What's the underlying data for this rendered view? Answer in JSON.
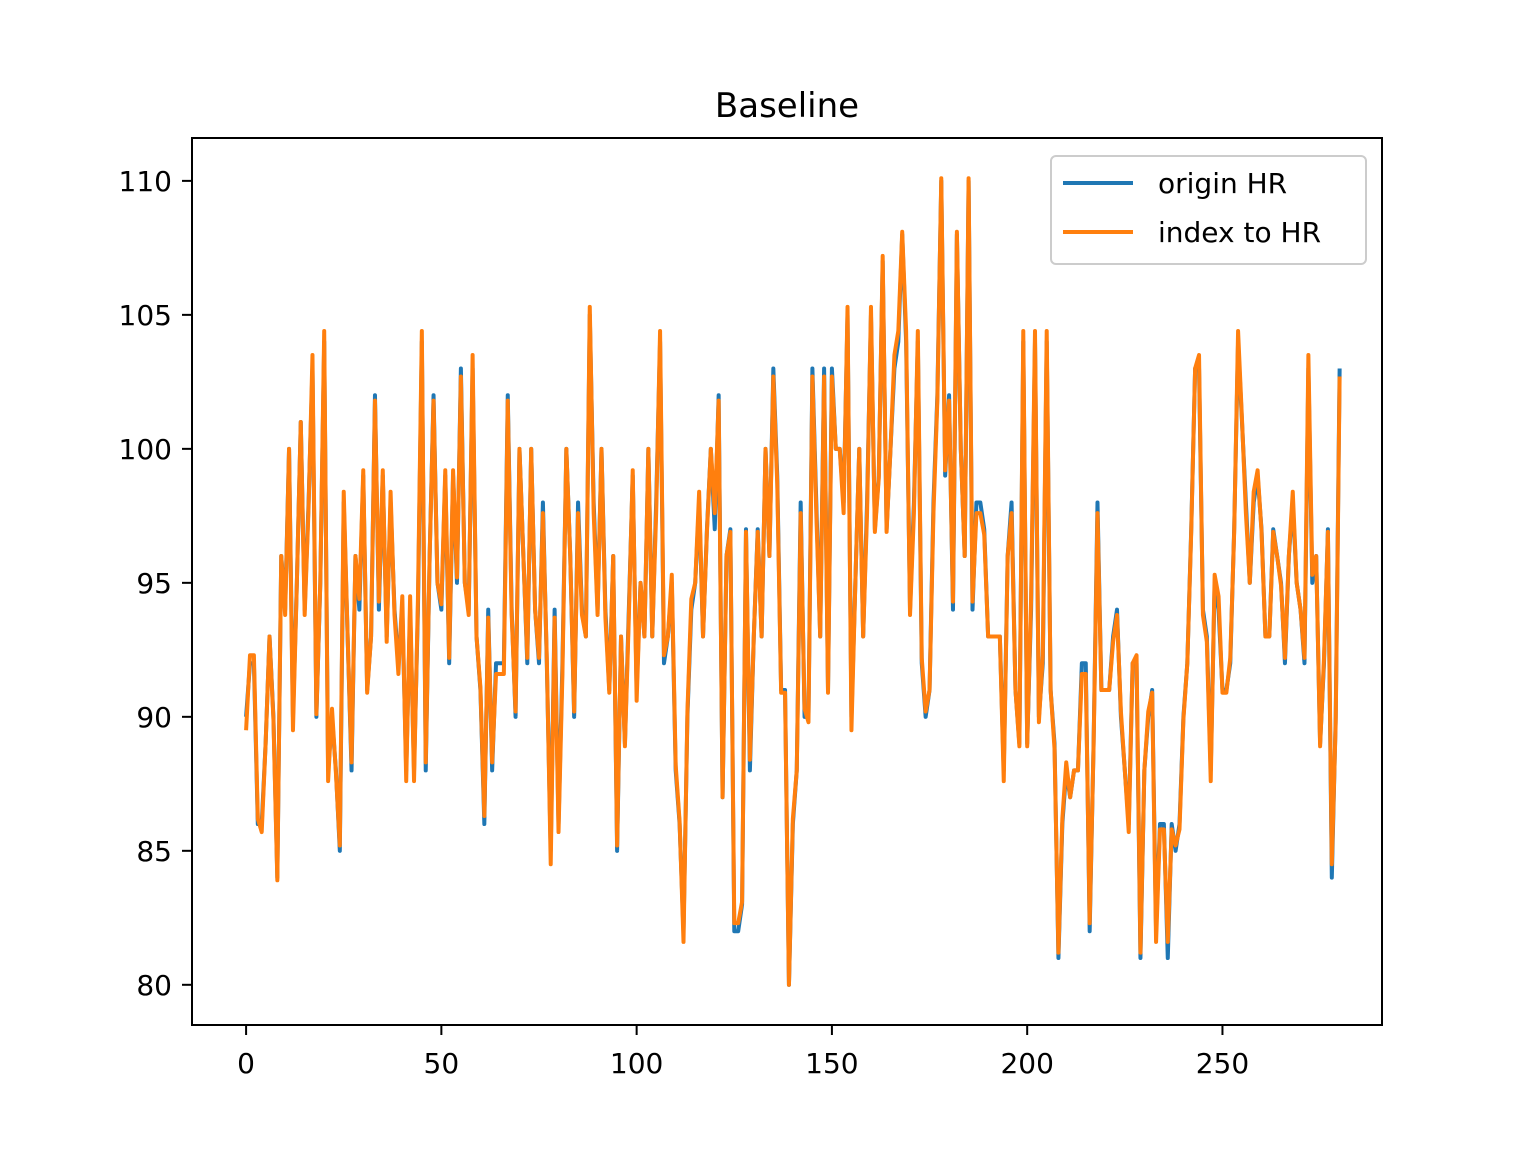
{
  "chart_data": {
    "type": "line",
    "title": "Baseline",
    "xlabel": "",
    "ylabel": "",
    "xlim": [
      -13.85,
      290.85
    ],
    "ylim": [
      78.5,
      111.6
    ],
    "x_ticks": [
      0,
      50,
      100,
      150,
      200,
      250
    ],
    "x_tick_labels": [
      "0",
      "50",
      "100",
      "150",
      "200",
      "250"
    ],
    "y_ticks": [
      80,
      85,
      90,
      95,
      100,
      105,
      110
    ],
    "y_tick_labels": [
      "80",
      "85",
      "90",
      "95",
      "100",
      "105",
      "110"
    ],
    "grid": false,
    "legend_position": "upper right",
    "series": [
      {
        "name": "origin HR",
        "color": "#1f77b4",
        "values": [
          90,
          92,
          92,
          86,
          86,
          89,
          93,
          90,
          84,
          96,
          94,
          100,
          90,
          95,
          101,
          94,
          98,
          103,
          90,
          95,
          104,
          88,
          90,
          88,
          85,
          98,
          93,
          88,
          96,
          94,
          99,
          91,
          93,
          102,
          94,
          99,
          93,
          98,
          94,
          92,
          94,
          88,
          94,
          88,
          94,
          104,
          88,
          96,
          102,
          95,
          94,
          99,
          92,
          99,
          95,
          103,
          95,
          94,
          103,
          93,
          91,
          86,
          94,
          88,
          92,
          92,
          92,
          102,
          94,
          90,
          100,
          96,
          92,
          100,
          94,
          92,
          98,
          92,
          85,
          94,
          86,
          92,
          100,
          96,
          90,
          98,
          94,
          93,
          105,
          98,
          94,
          100,
          94,
          91,
          96,
          85,
          93,
          89,
          94,
          99,
          91,
          95,
          93,
          100,
          93,
          98,
          104,
          92,
          93,
          95,
          88,
          86,
          82,
          90,
          94,
          95,
          98,
          93,
          97,
          100,
          97,
          102,
          87,
          96,
          97,
          82,
          82,
          83,
          97,
          88,
          93,
          97,
          93,
          100,
          96,
          103,
          99,
          91,
          91,
          80,
          86,
          88,
          98,
          90,
          90,
          103,
          98,
          93,
          103,
          91,
          103,
          100,
          100,
          98,
          105,
          90,
          95,
          100,
          93,
          98,
          105,
          97,
          99,
          107,
          97,
          100,
          103,
          104,
          108,
          104,
          94,
          98,
          104,
          92,
          90,
          91,
          98,
          102,
          110,
          99,
          102,
          94,
          108,
          100,
          96,
          110,
          94,
          98,
          98,
          97,
          93,
          93,
          93,
          93,
          88,
          96,
          98,
          91,
          89,
          104,
          89,
          94,
          104,
          90,
          92,
          104,
          91,
          89,
          81,
          86,
          88,
          87,
          88,
          88,
          92,
          92,
          82,
          89,
          98,
          91,
          91,
          91,
          93,
          94,
          90,
          88,
          86,
          92,
          92,
          81,
          88,
          90,
          91,
          82,
          86,
          86,
          81,
          86,
          85,
          86,
          90,
          92,
          97,
          103,
          103,
          94,
          93,
          88,
          95,
          94,
          91,
          91,
          92,
          97,
          104,
          101,
          98,
          95,
          98,
          99,
          97,
          93,
          93,
          97,
          96,
          95,
          92,
          96,
          98,
          95,
          94,
          92,
          103,
          95,
          96,
          89,
          92,
          97,
          84,
          90,
          103
        ]
      },
      {
        "name": "index to HR",
        "color": "#ff7f0e",
        "values": [
          89.5,
          92.3,
          92.3,
          86.2,
          85.7,
          89,
          93,
          89.9,
          83.9,
          96,
          93.8,
          100,
          89.5,
          95,
          101,
          93.8,
          97.8,
          103.5,
          90.1,
          95,
          104.4,
          87.6,
          90.3,
          87.9,
          85.2,
          98.4,
          93,
          88.3,
          96,
          94.4,
          99.2,
          90.9,
          93,
          101.8,
          94.3,
          99.2,
          92.8,
          98.4,
          93.8,
          91.6,
          94.5,
          87.6,
          94.5,
          87.6,
          94.4,
          104.4,
          88.3,
          96,
          101.8,
          95,
          94.2,
          99.2,
          92.2,
          99.2,
          95.2,
          102.7,
          95,
          93.8,
          103.5,
          93,
          91.1,
          86.3,
          93.7,
          88.3,
          91.6,
          91.6,
          91.6,
          101.8,
          93.8,
          90.2,
          100,
          96,
          92.2,
          100,
          94,
          92.2,
          97.6,
          92.2,
          84.5,
          93.7,
          85.7,
          91.6,
          100,
          96,
          90.2,
          97.6,
          93.8,
          93,
          105.3,
          97.6,
          93.8,
          100,
          93.7,
          90.9,
          96,
          85.2,
          93,
          88.9,
          93.7,
          99.2,
          90.6,
          95,
          93,
          100,
          93,
          97.6,
          104.4,
          92.3,
          93,
          95.3,
          88.2,
          86.1,
          81.6,
          90.2,
          94.4,
          95,
          98.4,
          93,
          96.9,
          100,
          97.6,
          101.8,
          87,
          96,
          96.9,
          82.3,
          82.3,
          83.1,
          96.9,
          88.4,
          93,
          96.9,
          93,
          100,
          96,
          102.7,
          98.7,
          90.9,
          90.9,
          80,
          86.2,
          88,
          97.6,
          90.3,
          89.8,
          102.7,
          97.6,
          93,
          102.7,
          90.9,
          102.7,
          100,
          100,
          97.6,
          105.3,
          89.5,
          95,
          100,
          93,
          97.6,
          105.3,
          96.9,
          98.9,
          107.2,
          96.9,
          100,
          103.5,
          104.4,
          108.1,
          104.4,
          93.8,
          97.6,
          104.4,
          92.2,
          90.2,
          91,
          97.6,
          101.8,
          110.1,
          99.2,
          101.8,
          94.3,
          108.1,
          100,
          96,
          110.1,
          94.3,
          97.6,
          97.6,
          96.8,
          93,
          93,
          93,
          93,
          87.6,
          96,
          97.6,
          91,
          88.9,
          104.4,
          88.9,
          94.4,
          104.4,
          89.8,
          92.3,
          104.4,
          91,
          88.8,
          81.2,
          86.2,
          88.3,
          87,
          88,
          88,
          91.6,
          91.6,
          82.3,
          88.9,
          97.6,
          91,
          91,
          91,
          92.8,
          93.8,
          90.2,
          88,
          85.7,
          92,
          92.3,
          81.2,
          88,
          90.2,
          90.9,
          81.6,
          85.8,
          85.8,
          81.6,
          85.8,
          85.2,
          85.8,
          89.9,
          92,
          96.9,
          103,
          103.5,
          93.8,
          92.8,
          87.6,
          95.3,
          94.5,
          90.9,
          90.9,
          92.2,
          96.9,
          104.4,
          101.1,
          97.6,
          95,
          98.4,
          99.2,
          96.9,
          93,
          93,
          96.9,
          96,
          94.9,
          92.2,
          96,
          98.4,
          95,
          94,
          92.2,
          103.5,
          95.3,
          96,
          88.9,
          92.2,
          96.9,
          84.5,
          89.8,
          102.7
        ]
      }
    ]
  }
}
